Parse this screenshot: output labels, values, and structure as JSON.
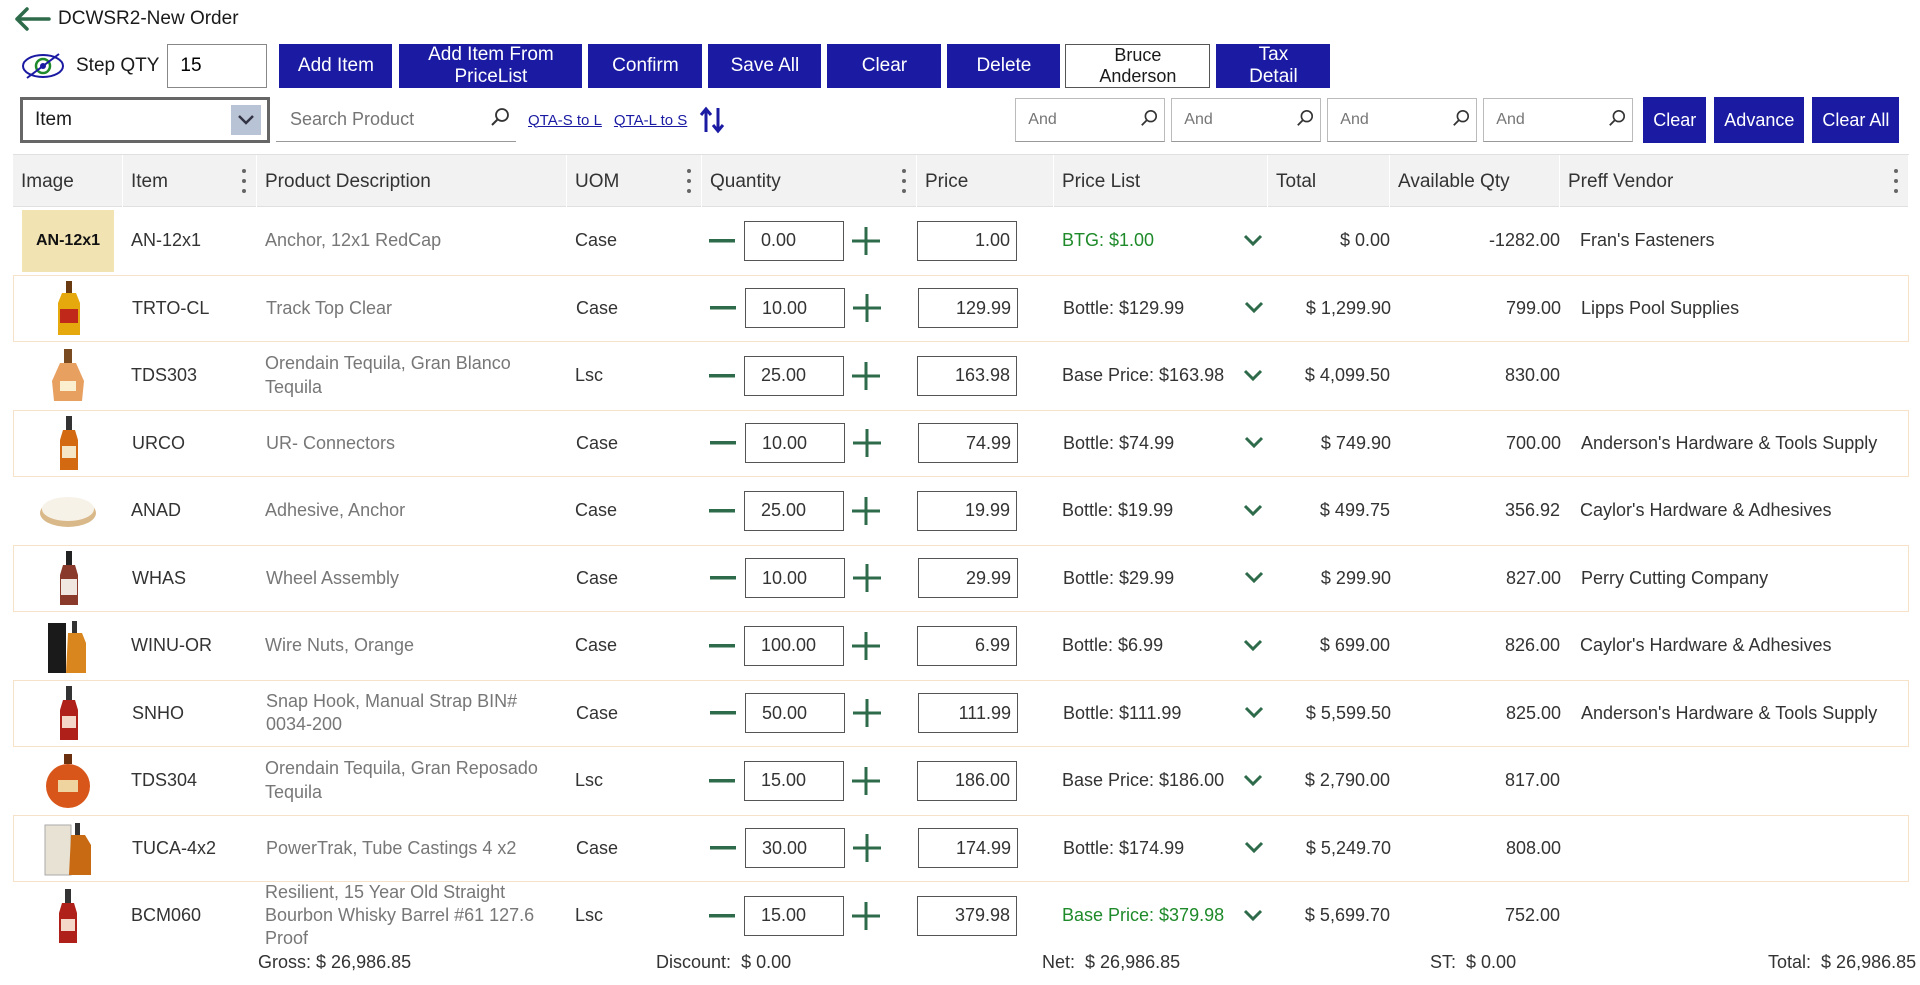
{
  "window": {
    "title": "DCWSR2-New Order"
  },
  "toolbar": {
    "step_label": "Step QTY",
    "step_value": "15",
    "buttons": [
      "Add Item",
      "Add Item From PriceList",
      "Confirm",
      "Save All",
      "Clear",
      "Delete"
    ],
    "user_button": "Bruce Anderson",
    "tax_button": "Tax Detail"
  },
  "filter": {
    "dropdown_value": "Item",
    "search_placeholder": "Search Product",
    "link_s_to_l": "QTA-S to L",
    "link_l_to_s": "QTA-L to S",
    "and_placeholder": "And",
    "clear_label": "Clear",
    "advance_label": "Advance",
    "clear_all_label": "Clear All"
  },
  "columns": [
    "Image",
    "Item",
    "Product Description",
    "UOM",
    "Quantity",
    "Price",
    "Price List",
    "Total",
    "Available Qty",
    "Preff Vendor"
  ],
  "rows": [
    {
      "image_tag": "AN-12x1",
      "item": "AN-12x1",
      "desc": "Anchor, 12x1 RedCap",
      "uom": "Case",
      "qty": "0.00",
      "price": "1.00",
      "price_list": "BTG: $1.00",
      "pl_green": true,
      "total": "$ 0.00",
      "avail": "-1282.00",
      "vendor": "Fran's Fasteners",
      "img": "tag"
    },
    {
      "item": "TRTO-CL",
      "desc": "Track Top Clear",
      "uom": "Case",
      "qty": "10.00",
      "price": "129.99",
      "price_list": "Bottle: $129.99",
      "pl_green": false,
      "total": "$ 1,299.90",
      "avail": "799.00",
      "vendor": "Lipps Pool Supplies",
      "img": "bottle-yellow"
    },
    {
      "item": "TDS303",
      "desc": "Orendain Tequila, Gran Blanco Tequila",
      "uom": "Lsc",
      "qty": "25.00",
      "price": "163.98",
      "price_list": "Base Price: $163.98",
      "pl_green": false,
      "total": "$ 4,099.50",
      "avail": "830.00",
      "vendor": "",
      "img": "decanter"
    },
    {
      "item": "URCO",
      "desc": "UR- Connectors",
      "uom": "Case",
      "qty": "10.00",
      "price": "74.99",
      "price_list": "Bottle: $74.99",
      "pl_green": false,
      "total": "$ 749.90",
      "avail": "700.00",
      "vendor": "Anderson's Hardware & Tools Supply",
      "img": "bottle-amber"
    },
    {
      "item": "ANAD",
      "desc": "Adhesive, Anchor",
      "uom": "Case",
      "qty": "25.00",
      "price": "19.99",
      "price_list": "Bottle: $19.99",
      "pl_green": false,
      "total": "$ 499.75",
      "avail": "356.92",
      "vendor": "Caylor's Hardware & Adhesives",
      "img": "disc"
    },
    {
      "item": "WHAS",
      "desc": "Wheel Assembly",
      "uom": "Case",
      "qty": "10.00",
      "price": "29.99",
      "price_list": "Bottle: $29.99",
      "pl_green": false,
      "total": "$ 299.90",
      "avail": "827.00",
      "vendor": "Perry Cutting Company",
      "img": "bottle-dark"
    },
    {
      "item": "WINU-OR",
      "desc": "Wire Nuts, Orange",
      "uom": "Case",
      "qty": "100.00",
      "price": "6.99",
      "price_list": "Bottle: $6.99",
      "pl_green": false,
      "total": "$ 699.00",
      "avail": "826.00",
      "vendor": "Caylor's Hardware & Adhesives",
      "img": "box-bottle"
    },
    {
      "item": "SNHO",
      "desc": "Snap Hook, Manual Strap BIN# 0034-200",
      "uom": "Case",
      "qty": "50.00",
      "price": "111.99",
      "price_list": "Bottle: $111.99",
      "pl_green": false,
      "total": "$ 5,599.50",
      "avail": "825.00",
      "vendor": "Anderson's Hardware & Tools Supply",
      "img": "bottle-red"
    },
    {
      "item": "TDS304",
      "desc": "Orendain Tequila, Gran Reposado Tequila",
      "uom": "Lsc",
      "qty": "15.00",
      "price": "186.00",
      "price_list": "Base Price: $186.00",
      "pl_green": false,
      "total": "$ 2,790.00",
      "avail": "817.00",
      "vendor": "",
      "img": "round-amber"
    },
    {
      "item": "TUCA-4x2",
      "desc": "PowerTrak, Tube Castings 4 x2",
      "uom": "Case",
      "qty": "30.00",
      "price": "174.99",
      "price_list": "Bottle: $174.99",
      "pl_green": false,
      "total": "$ 5,249.70",
      "avail": "808.00",
      "vendor": "",
      "img": "box-amber"
    },
    {
      "item": "BCM060",
      "desc": "Resilient, 15 Year Old Straight Bourbon Whisky Barrel #61 127.6 Proof",
      "uom": "Lsc",
      "qty": "15.00",
      "price": "379.98",
      "price_list": "Base Price: $379.98",
      "pl_green": true,
      "total": "$ 5,699.70",
      "avail": "752.00",
      "vendor": "",
      "img": "bottle-red"
    }
  ],
  "footer": {
    "gross_label": "Gross:",
    "gross": "$ 26,986.85",
    "discount_label": "Discount:",
    "discount": "$ 0.00",
    "net_label": "Net:",
    "net": "$ 26,986.85",
    "st_label": "ST:",
    "st": "$ 0.00",
    "total_label": "Total:",
    "total": "$ 26,986.85"
  },
  "colors": {
    "accent": "#1a1aa3",
    "green": "#1e8a2a",
    "stepper": "#2e6b4a"
  }
}
